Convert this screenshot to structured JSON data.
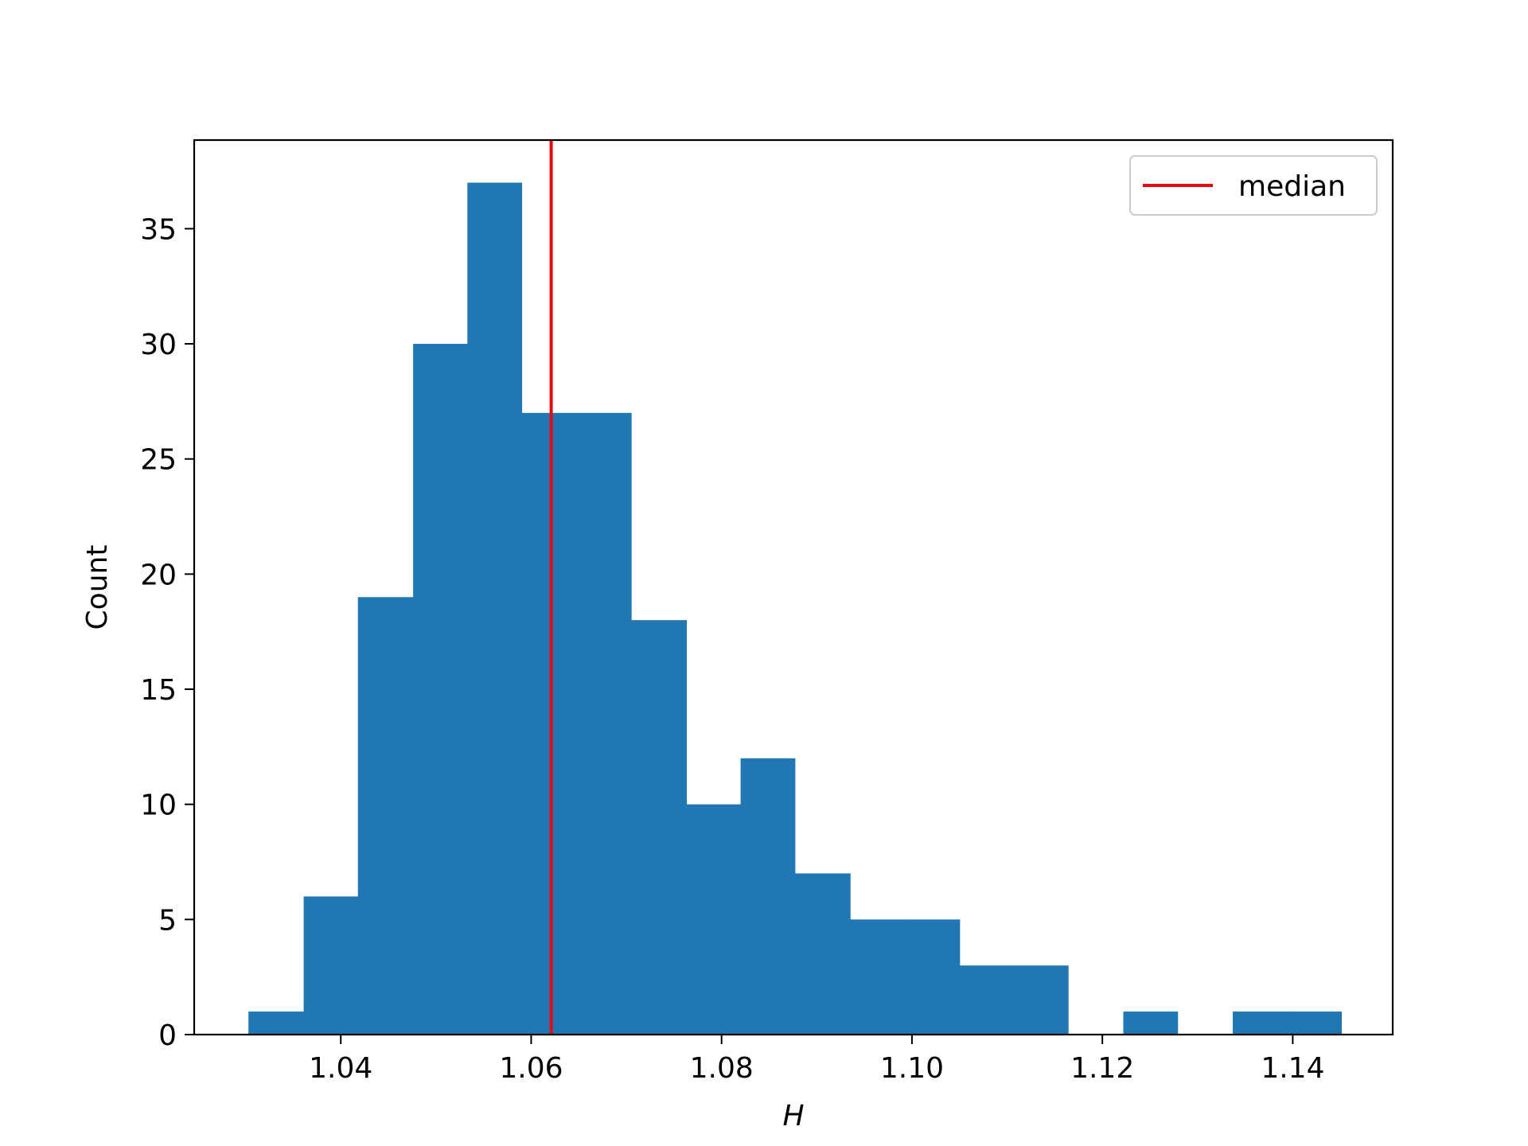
{
  "chart_data": {
    "type": "bar",
    "subtype": "histogram",
    "xlabel": "H",
    "ylabel": "Count",
    "xlim": [
      1.0246,
      1.1505
    ],
    "ylim": [
      0,
      38.85
    ],
    "x_ticks": [
      "1.04",
      "1.06",
      "1.08",
      "1.10",
      "1.12",
      "1.14"
    ],
    "y_ticks": [
      "0",
      "5",
      "10",
      "15",
      "20",
      "25",
      "30",
      "35"
    ],
    "bins": [
      {
        "x0": 1.0303,
        "x1": 1.0361,
        "count": 1
      },
      {
        "x0": 1.0361,
        "x1": 1.0418,
        "count": 6
      },
      {
        "x0": 1.0418,
        "x1": 1.0476,
        "count": 19
      },
      {
        "x0": 1.0476,
        "x1": 1.0533,
        "count": 30
      },
      {
        "x0": 1.0533,
        "x1": 1.059,
        "count": 37
      },
      {
        "x0": 1.059,
        "x1": 1.0648,
        "count": 27
      },
      {
        "x0": 1.0648,
        "x1": 1.0705,
        "count": 27
      },
      {
        "x0": 1.0705,
        "x1": 1.0763,
        "count": 18
      },
      {
        "x0": 1.0763,
        "x1": 1.082,
        "count": 10
      },
      {
        "x0": 1.082,
        "x1": 1.0877,
        "count": 12
      },
      {
        "x0": 1.0877,
        "x1": 1.0935,
        "count": 7
      },
      {
        "x0": 1.0935,
        "x1": 1.0992,
        "count": 5
      },
      {
        "x0": 1.0992,
        "x1": 1.105,
        "count": 5
      },
      {
        "x0": 1.105,
        "x1": 1.1107,
        "count": 3
      },
      {
        "x0": 1.1107,
        "x1": 1.1164,
        "count": 3
      },
      {
        "x0": 1.1164,
        "x1": 1.1222,
        "count": 0
      },
      {
        "x0": 1.1222,
        "x1": 1.1279,
        "count": 1
      },
      {
        "x0": 1.1279,
        "x1": 1.1337,
        "count": 0
      },
      {
        "x0": 1.1337,
        "x1": 1.1394,
        "count": 1
      },
      {
        "x0": 1.1394,
        "x1": 1.1451,
        "count": 1
      }
    ],
    "median": 1.0621,
    "legend": {
      "entries": [
        "median"
      ],
      "placement": "top-right"
    },
    "grid": false,
    "colors": {
      "bars": "#2077b4",
      "median": "#e8090f",
      "axes": "#000000"
    }
  }
}
